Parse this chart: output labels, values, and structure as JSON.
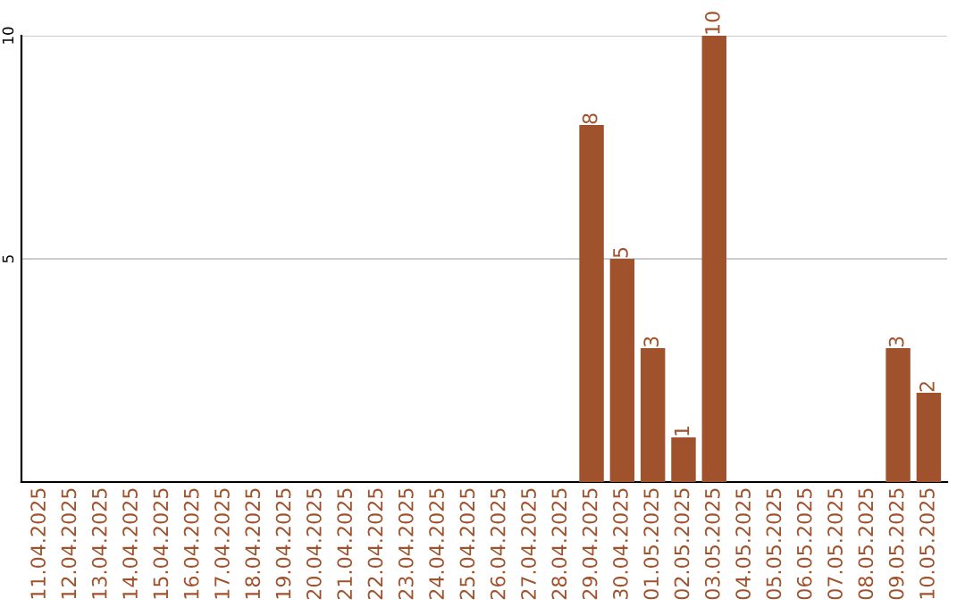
{
  "chart_data": {
    "type": "bar",
    "categories": [
      "11.04.2025",
      "12.04.2025",
      "13.04.2025",
      "14.04.2025",
      "15.04.2025",
      "16.04.2025",
      "17.04.2025",
      "18.04.2025",
      "19.04.2025",
      "20.04.2025",
      "21.04.2025",
      "22.04.2025",
      "23.04.2025",
      "24.04.2025",
      "25.04.2025",
      "26.04.2025",
      "27.04.2025",
      "28.04.2025",
      "29.04.2025",
      "30.04.2025",
      "01.05.2025",
      "02.05.2025",
      "03.05.2025",
      "04.05.2025",
      "05.05.2025",
      "06.05.2025",
      "07.05.2025",
      "08.05.2025",
      "09.05.2025",
      "10.05.2025"
    ],
    "values": [
      0,
      0,
      0,
      0,
      0,
      0,
      0,
      0,
      0,
      0,
      0,
      0,
      0,
      0,
      0,
      0,
      0,
      0,
      8,
      5,
      3,
      1,
      10,
      0,
      0,
      0,
      0,
      0,
      3,
      2
    ],
    "value_labels": [
      null,
      null,
      null,
      null,
      null,
      null,
      null,
      null,
      null,
      null,
      null,
      null,
      null,
      null,
      null,
      null,
      null,
      null,
      "8",
      "5",
      "3",
      "1",
      "10",
      null,
      null,
      null,
      null,
      null,
      "3",
      "2"
    ],
    "color": "#a0522d",
    "ylim": [
      0,
      10
    ],
    "yticks": [
      5,
      10
    ],
    "grid": "y"
  }
}
